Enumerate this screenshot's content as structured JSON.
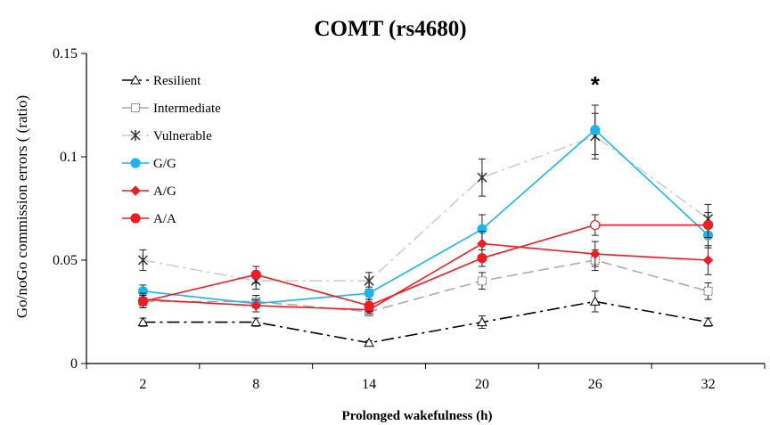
{
  "chart_data": {
    "type": "line",
    "title": "COMT (rs4680)",
    "xlabel": "Prolonged wakefulness (h)",
    "ylabel": "Go/noGo commission errors ( (ratio)",
    "categories": [
      "2",
      "8",
      "14",
      "20",
      "26",
      "32"
    ],
    "ylim": [
      0,
      0.15
    ],
    "yticks": [
      "0",
      "0.05",
      "0.1",
      "0.15"
    ],
    "grid": false,
    "legend_position": "top-left",
    "annotation": {
      "text": "*",
      "category": "26"
    },
    "series": [
      {
        "name": "Resilient",
        "values": [
          0.02,
          0.02,
          0.01,
          0.02,
          0.03,
          0.02
        ],
        "errors": [
          0.002,
          0.002,
          0.001,
          0.003,
          0.005,
          0.002
        ],
        "color": "#000000",
        "dash": "dashdot",
        "marker": "triangle-open"
      },
      {
        "name": "Intermediate",
        "values": [
          0.03,
          0.03,
          0.025,
          0.04,
          0.05,
          0.035
        ],
        "errors": [
          0.003,
          0.003,
          0.002,
          0.004,
          0.005,
          0.004
        ],
        "color": "#aaaaaa",
        "dash": "longdash",
        "marker": "square-open"
      },
      {
        "name": "Vulnerable",
        "values": [
          0.05,
          0.04,
          0.04,
          0.09,
          0.11,
          0.07
        ],
        "errors": [
          0.005,
          0.004,
          0.004,
          0.009,
          0.011,
          0.007
        ],
        "color": "#cccccc",
        "dash": "dashdot",
        "marker": "x-star"
      },
      {
        "name": "G/G",
        "values": [
          0.035,
          0.029,
          0.034,
          0.065,
          0.113,
          0.062
        ],
        "errors": [
          0.003,
          0.002,
          0.003,
          0.007,
          0.012,
          0.006
        ],
        "color": "#1eb4e6",
        "dash": "solid",
        "marker": "circle"
      },
      {
        "name": "A/G",
        "values": [
          0.031,
          0.028,
          0.026,
          0.058,
          0.053,
          0.05
        ],
        "errors": [
          0.003,
          0.003,
          0.002,
          0.006,
          0.006,
          0.007
        ],
        "color": "#ee1c24",
        "dash": "solid",
        "marker": "diamond"
      },
      {
        "name": "A/A",
        "values": [
          0.03,
          0.043,
          0.028,
          0.051,
          0.067,
          0.067
        ],
        "errors": [
          0.003,
          0.004,
          0.003,
          0.004,
          0.005,
          0.006
        ],
        "color": "#ee1c24",
        "dash": "solid",
        "marker": "circle",
        "hollow_at": [
          4
        ]
      }
    ]
  }
}
